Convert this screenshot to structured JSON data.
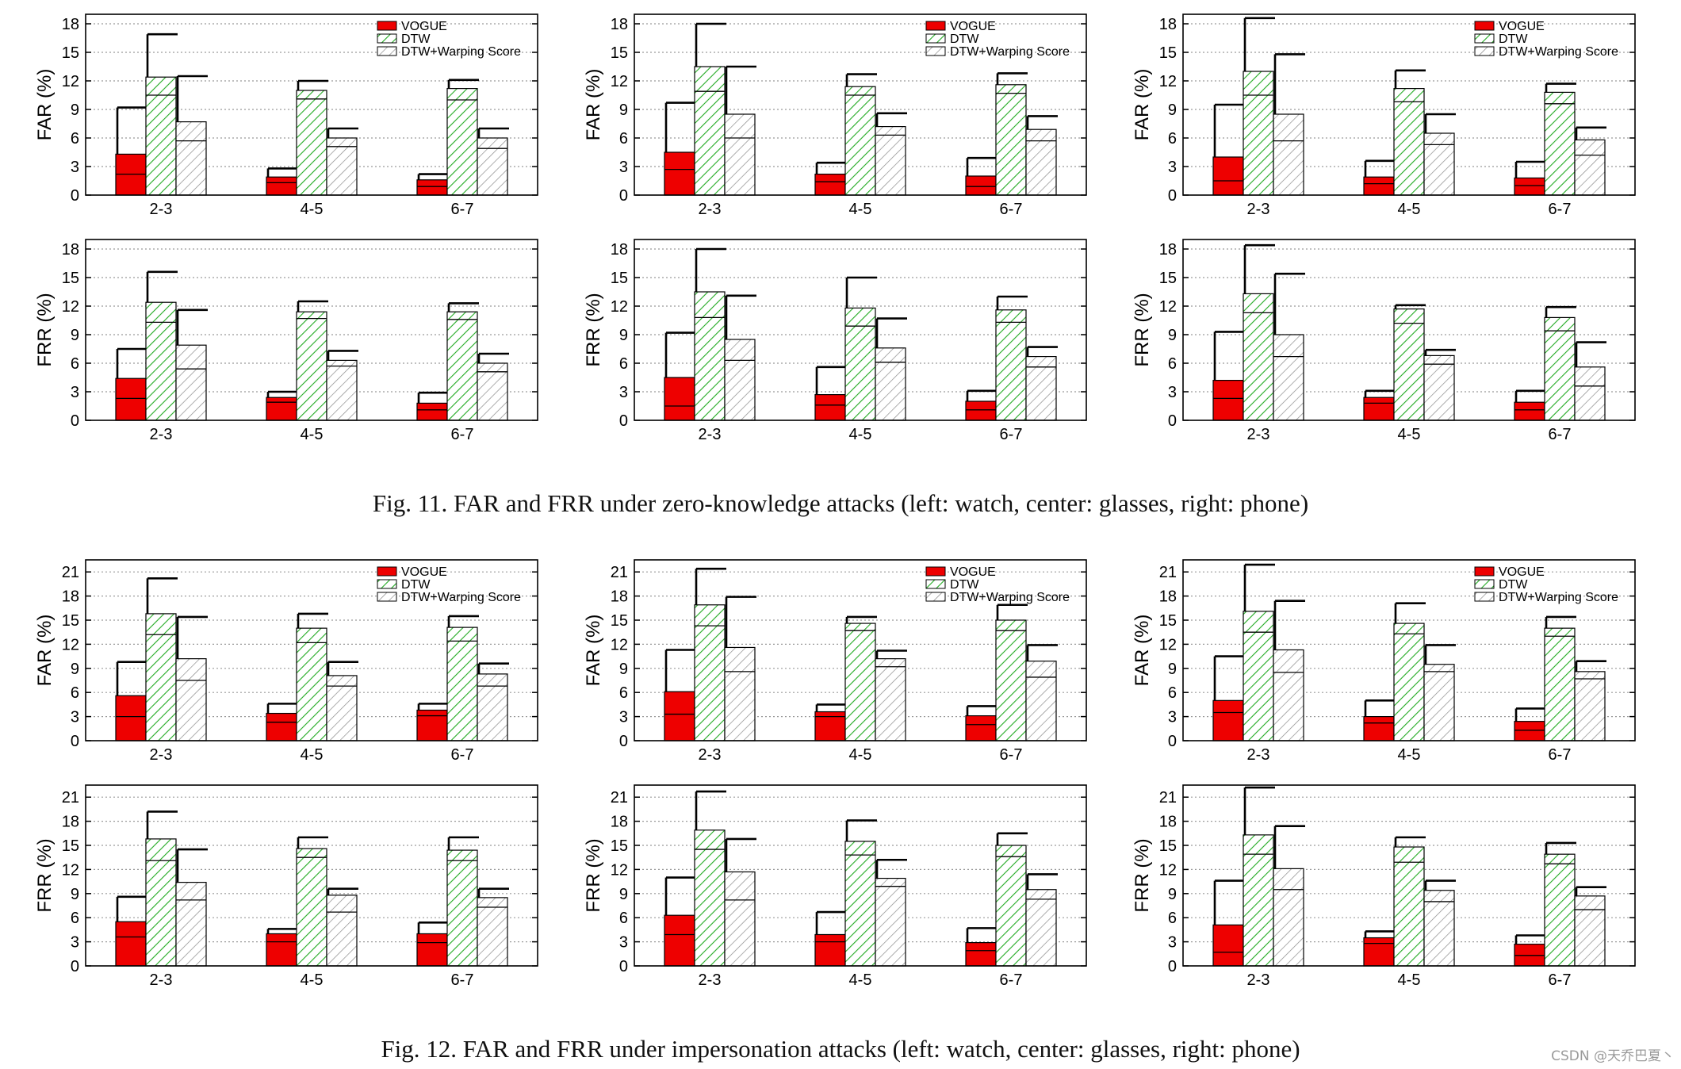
{
  "legend": {
    "vogue": "VOGUE",
    "dtw": "DTW",
    "dtw_ws": "DTW+Warping Score"
  },
  "colors": {
    "vogue": "#ee0000",
    "dtw_hatch": "#22aa22",
    "dtw_ws_hatch": "#8a8a8a",
    "axis": "#000000",
    "grid": "#9a9a9a"
  },
  "captions": {
    "fig11": "Fig. 11.  FAR and FRR under zero-knowledge attacks (left: watch, center: glasses, right: phone)",
    "fig12": "Fig. 12.  FAR and FRR under impersonation attacks (left: watch, center: glasses, right: phone)"
  },
  "watermark": "CSDN @天乔巴夏丶",
  "chart_data": [
    {
      "type": "bar",
      "ylabel": "FAR (%)",
      "categories": [
        "2-3",
        "4-5",
        "6-7"
      ],
      "ylim": [
        0,
        19
      ],
      "yticks": [
        0,
        3,
        6,
        9,
        12,
        15,
        18
      ],
      "series": [
        {
          "name": "VOGUE",
          "values": [
            4.3,
            1.9,
            1.6
          ],
          "lows": [
            2.2,
            1.3,
            0.9
          ],
          "highs": [
            9.2,
            2.8,
            2.2
          ]
        },
        {
          "name": "DTW",
          "values": [
            12.4,
            11.0,
            11.2
          ],
          "lows": [
            10.5,
            10.1,
            10.0
          ],
          "highs": [
            16.9,
            12.0,
            12.1
          ]
        },
        {
          "name": "DTW+Warping Score",
          "values": [
            7.7,
            6.0,
            6.0
          ],
          "lows": [
            5.7,
            5.1,
            4.9
          ],
          "highs": [
            12.5,
            7.0,
            7.0
          ]
        }
      ]
    },
    {
      "type": "bar",
      "ylabel": "FAR (%)",
      "categories": [
        "2-3",
        "4-5",
        "6-7"
      ],
      "ylim": [
        0,
        19
      ],
      "yticks": [
        0,
        3,
        6,
        9,
        12,
        15,
        18
      ],
      "series": [
        {
          "name": "VOGUE",
          "values": [
            4.5,
            2.2,
            2.0
          ],
          "lows": [
            2.7,
            1.4,
            0.9
          ],
          "highs": [
            9.7,
            3.4,
            3.9
          ]
        },
        {
          "name": "DTW",
          "values": [
            13.5,
            11.4,
            11.6
          ],
          "lows": [
            10.9,
            10.5,
            10.7
          ],
          "highs": [
            18.0,
            12.7,
            12.8
          ]
        },
        {
          "name": "DTW+Warping Score",
          "values": [
            8.5,
            7.2,
            6.9
          ],
          "lows": [
            6.0,
            6.3,
            5.7
          ],
          "highs": [
            13.5,
            8.6,
            8.3
          ]
        }
      ]
    },
    {
      "type": "bar",
      "ylabel": "FAR (%)",
      "categories": [
        "2-3",
        "4-5",
        "6-7"
      ],
      "ylim": [
        0,
        19
      ],
      "yticks": [
        0,
        3,
        6,
        9,
        12,
        15,
        18
      ],
      "series": [
        {
          "name": "VOGUE",
          "values": [
            4.0,
            1.9,
            1.8
          ],
          "lows": [
            1.5,
            1.2,
            1.0
          ],
          "highs": [
            9.5,
            3.6,
            3.5
          ]
        },
        {
          "name": "DTW",
          "values": [
            13.0,
            11.2,
            10.8
          ],
          "lows": [
            10.5,
            9.8,
            9.6
          ],
          "highs": [
            18.6,
            13.1,
            11.7
          ]
        },
        {
          "name": "DTW+Warping Score",
          "values": [
            8.5,
            6.5,
            5.8
          ],
          "lows": [
            5.7,
            5.3,
            4.2
          ],
          "highs": [
            14.8,
            8.5,
            7.1
          ]
        }
      ]
    },
    {
      "type": "bar",
      "ylabel": "FRR (%)",
      "categories": [
        "2-3",
        "4-5",
        "6-7"
      ],
      "ylim": [
        0,
        19
      ],
      "yticks": [
        0,
        3,
        6,
        9,
        12,
        15,
        18
      ],
      "series": [
        {
          "name": "VOGUE",
          "values": [
            4.4,
            2.4,
            1.8
          ],
          "lows": [
            2.3,
            1.9,
            1.1
          ],
          "highs": [
            7.5,
            3.0,
            2.9
          ]
        },
        {
          "name": "DTW",
          "values": [
            12.4,
            11.4,
            11.4
          ],
          "lows": [
            10.3,
            10.7,
            10.6
          ],
          "highs": [
            15.6,
            12.5,
            12.3
          ]
        },
        {
          "name": "DTW+Warping Score",
          "values": [
            7.9,
            6.3,
            6.0
          ],
          "lows": [
            5.4,
            5.7,
            5.1
          ],
          "highs": [
            11.6,
            7.3,
            7.0
          ]
        }
      ]
    },
    {
      "type": "bar",
      "ylabel": "FRR (%)",
      "categories": [
        "2-3",
        "4-5",
        "6-7"
      ],
      "ylim": [
        0,
        19
      ],
      "yticks": [
        0,
        3,
        6,
        9,
        12,
        15,
        18
      ],
      "series": [
        {
          "name": "VOGUE",
          "values": [
            4.5,
            2.7,
            2.0
          ],
          "lows": [
            1.5,
            1.6,
            1.1
          ],
          "highs": [
            9.2,
            5.6,
            3.1
          ]
        },
        {
          "name": "DTW",
          "values": [
            13.5,
            11.8,
            11.6
          ],
          "lows": [
            10.8,
            9.9,
            10.3
          ],
          "highs": [
            18.0,
            15.0,
            13.0
          ]
        },
        {
          "name": "DTW+Warping Score",
          "values": [
            8.5,
            7.6,
            6.7
          ],
          "lows": [
            6.3,
            6.1,
            5.6
          ],
          "highs": [
            13.1,
            10.7,
            7.7
          ]
        }
      ]
    },
    {
      "type": "bar",
      "ylabel": "FRR (%)",
      "categories": [
        "2-3",
        "4-5",
        "6-7"
      ],
      "ylim": [
        0,
        19
      ],
      "yticks": [
        0,
        3,
        6,
        9,
        12,
        15,
        18
      ],
      "series": [
        {
          "name": "VOGUE",
          "values": [
            4.2,
            2.4,
            1.9
          ],
          "lows": [
            2.3,
            1.8,
            1.1
          ],
          "highs": [
            9.3,
            3.1,
            3.1
          ]
        },
        {
          "name": "DTW",
          "values": [
            13.3,
            11.7,
            10.8
          ],
          "lows": [
            11.3,
            10.2,
            9.4
          ],
          "highs": [
            18.4,
            12.1,
            11.9
          ]
        },
        {
          "name": "DTW+Warping Score",
          "values": [
            9.0,
            6.8,
            5.6
          ],
          "lows": [
            6.7,
            5.9,
            3.6
          ],
          "highs": [
            15.4,
            7.4,
            8.2
          ]
        }
      ]
    },
    {
      "type": "bar",
      "ylabel": "FAR (%)",
      "categories": [
        "2-3",
        "4-5",
        "6-7"
      ],
      "ylim": [
        0,
        22.5
      ],
      "yticks": [
        0,
        3,
        6,
        9,
        12,
        15,
        18,
        21
      ],
      "series": [
        {
          "name": "VOGUE",
          "values": [
            5.6,
            3.4,
            3.8
          ],
          "lows": [
            3.0,
            2.3,
            3.1
          ],
          "highs": [
            9.8,
            4.6,
            4.6
          ]
        },
        {
          "name": "DTW",
          "values": [
            15.8,
            14.0,
            14.1
          ],
          "lows": [
            13.2,
            12.2,
            12.4
          ],
          "highs": [
            20.2,
            15.8,
            15.5
          ]
        },
        {
          "name": "DTW+Warping Score",
          "values": [
            10.2,
            8.1,
            8.3
          ],
          "lows": [
            7.5,
            6.8,
            6.8
          ],
          "highs": [
            15.4,
            9.8,
            9.6
          ]
        }
      ]
    },
    {
      "type": "bar",
      "ylabel": "FAR (%)",
      "categories": [
        "2-3",
        "4-5",
        "6-7"
      ],
      "ylim": [
        0,
        22.5
      ],
      "yticks": [
        0,
        3,
        6,
        9,
        12,
        15,
        18,
        21
      ],
      "series": [
        {
          "name": "VOGUE",
          "values": [
            6.1,
            3.6,
            3.1
          ],
          "lows": [
            3.3,
            3.0,
            2.0
          ],
          "highs": [
            11.3,
            4.5,
            4.3
          ]
        },
        {
          "name": "DTW",
          "values": [
            16.9,
            14.6,
            15.0
          ],
          "lows": [
            14.3,
            13.7,
            13.7
          ],
          "highs": [
            21.4,
            15.4,
            16.9
          ]
        },
        {
          "name": "DTW+Warping Score",
          "values": [
            11.6,
            10.2,
            9.9
          ],
          "lows": [
            8.6,
            9.2,
            7.9
          ],
          "highs": [
            17.9,
            11.2,
            11.9
          ]
        }
      ]
    },
    {
      "type": "bar",
      "ylabel": "FAR (%)",
      "categories": [
        "2-3",
        "4-5",
        "6-7"
      ],
      "ylim": [
        0,
        22.5
      ],
      "yticks": [
        0,
        3,
        6,
        9,
        12,
        15,
        18,
        21
      ],
      "series": [
        {
          "name": "VOGUE",
          "values": [
            5.0,
            3.0,
            2.4
          ],
          "lows": [
            3.5,
            2.2,
            1.3
          ],
          "highs": [
            10.5,
            5.0,
            4.0
          ]
        },
        {
          "name": "DTW",
          "values": [
            16.1,
            14.6,
            14.0
          ],
          "lows": [
            13.5,
            13.3,
            13.0
          ],
          "highs": [
            21.9,
            17.1,
            15.4
          ]
        },
        {
          "name": "DTW+Warping Score",
          "values": [
            11.3,
            9.5,
            8.6
          ],
          "lows": [
            8.5,
            8.6,
            7.7
          ],
          "highs": [
            17.4,
            11.9,
            9.9
          ]
        }
      ]
    },
    {
      "type": "bar",
      "ylabel": "FRR (%)",
      "categories": [
        "2-3",
        "4-5",
        "6-7"
      ],
      "ylim": [
        0,
        22.5
      ],
      "yticks": [
        0,
        3,
        6,
        9,
        12,
        15,
        18,
        21
      ],
      "series": [
        {
          "name": "VOGUE",
          "values": [
            5.5,
            4.0,
            4.0
          ],
          "lows": [
            3.6,
            3.0,
            2.9
          ],
          "highs": [
            8.6,
            4.6,
            5.4
          ]
        },
        {
          "name": "DTW",
          "values": [
            15.8,
            14.6,
            14.4
          ],
          "lows": [
            13.1,
            13.5,
            13.1
          ],
          "highs": [
            19.2,
            16.0,
            16.0
          ]
        },
        {
          "name": "DTW+Warping Score",
          "values": [
            10.4,
            8.8,
            8.5
          ],
          "lows": [
            8.2,
            6.7,
            7.3
          ],
          "highs": [
            14.5,
            9.6,
            9.6
          ]
        }
      ]
    },
    {
      "type": "bar",
      "ylabel": "FRR (%)",
      "categories": [
        "2-3",
        "4-5",
        "6-7"
      ],
      "ylim": [
        0,
        22.5
      ],
      "yticks": [
        0,
        3,
        6,
        9,
        12,
        15,
        18,
        21
      ],
      "series": [
        {
          "name": "VOGUE",
          "values": [
            6.3,
            3.9,
            2.9
          ],
          "lows": [
            3.9,
            3.0,
            1.9
          ],
          "highs": [
            11.0,
            6.7,
            4.7
          ]
        },
        {
          "name": "DTW",
          "values": [
            16.9,
            15.5,
            15.0
          ],
          "lows": [
            14.5,
            13.8,
            13.6
          ],
          "highs": [
            21.7,
            18.1,
            16.5
          ]
        },
        {
          "name": "DTW+Warping Score",
          "values": [
            11.7,
            10.9,
            9.5
          ],
          "lows": [
            8.2,
            9.9,
            8.3
          ],
          "highs": [
            15.8,
            13.2,
            11.4
          ]
        }
      ]
    },
    {
      "type": "bar",
      "ylabel": "FRR (%)",
      "categories": [
        "2-3",
        "4-5",
        "6-7"
      ],
      "ylim": [
        0,
        22.5
      ],
      "yticks": [
        0,
        3,
        6,
        9,
        12,
        15,
        18,
        21
      ],
      "series": [
        {
          "name": "VOGUE",
          "values": [
            5.1,
            3.5,
            2.7
          ],
          "lows": [
            1.7,
            2.8,
            1.3
          ],
          "highs": [
            10.6,
            4.3,
            3.8
          ]
        },
        {
          "name": "DTW",
          "values": [
            16.3,
            14.8,
            13.9
          ],
          "lows": [
            13.9,
            12.9,
            12.7
          ],
          "highs": [
            22.2,
            16.0,
            15.3
          ]
        },
        {
          "name": "DTW+Warping Score",
          "values": [
            12.1,
            9.4,
            8.7
          ],
          "lows": [
            9.5,
            8.0,
            7.0
          ],
          "highs": [
            17.4,
            10.6,
            9.8
          ]
        }
      ]
    }
  ]
}
